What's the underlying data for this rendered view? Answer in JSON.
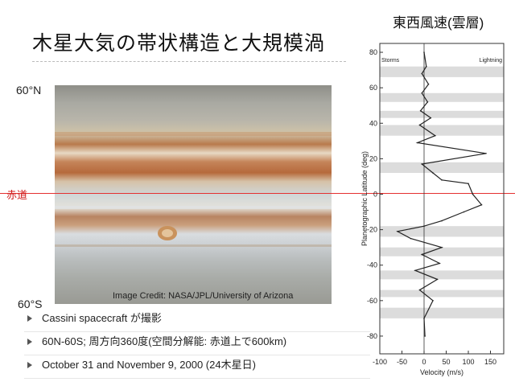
{
  "slide": {
    "title": "木星大気の帯状構造と大規模渦",
    "lat_north": "60°N",
    "lat_south": "60°S",
    "equator_label": "赤道",
    "image_credit": "Image Credit: NASA/JPL/University of Arizona",
    "bullets": [
      "Cassini spacecraft が撮影",
      "60N-60S; 周方向360度(空間分解能: 赤道上で600km)",
      "October 31 and November 9, 2000 (24木星日)"
    ]
  },
  "chart_data": {
    "type": "line",
    "title": "東西風速(雲層)",
    "xlabel": "Velocity (m/s)",
    "ylabel": "Planetographic Latitude (deg)",
    "xlim": [
      -100,
      180
    ],
    "ylim": [
      -90,
      85
    ],
    "xticks": [
      -100,
      -50,
      0,
      50,
      100,
      150
    ],
    "yticks": [
      80,
      60,
      40,
      20,
      0,
      -20,
      -40,
      -60,
      -80
    ],
    "legend_left": "Storms",
    "legend_right": "Lightning",
    "series": [
      {
        "x": [
          0,
          5,
          -5,
          10,
          -5,
          8,
          -8,
          15,
          -10,
          25,
          -15,
          140,
          -5,
          20,
          40,
          100,
          110,
          130,
          90,
          40,
          0,
          -60,
          -30,
          40,
          -5,
          35,
          -20,
          30,
          -10,
          20,
          0,
          2
        ],
        "y": [
          80,
          72,
          68,
          62,
          57,
          52,
          47,
          43,
          39,
          33,
          29,
          23,
          17,
          12,
          8,
          6,
          0,
          -6,
          -10,
          -15,
          -18,
          -21,
          -25,
          -30,
          -34,
          -39,
          -43,
          -48,
          -54,
          -60,
          -70,
          -80
        ]
      }
    ]
  }
}
